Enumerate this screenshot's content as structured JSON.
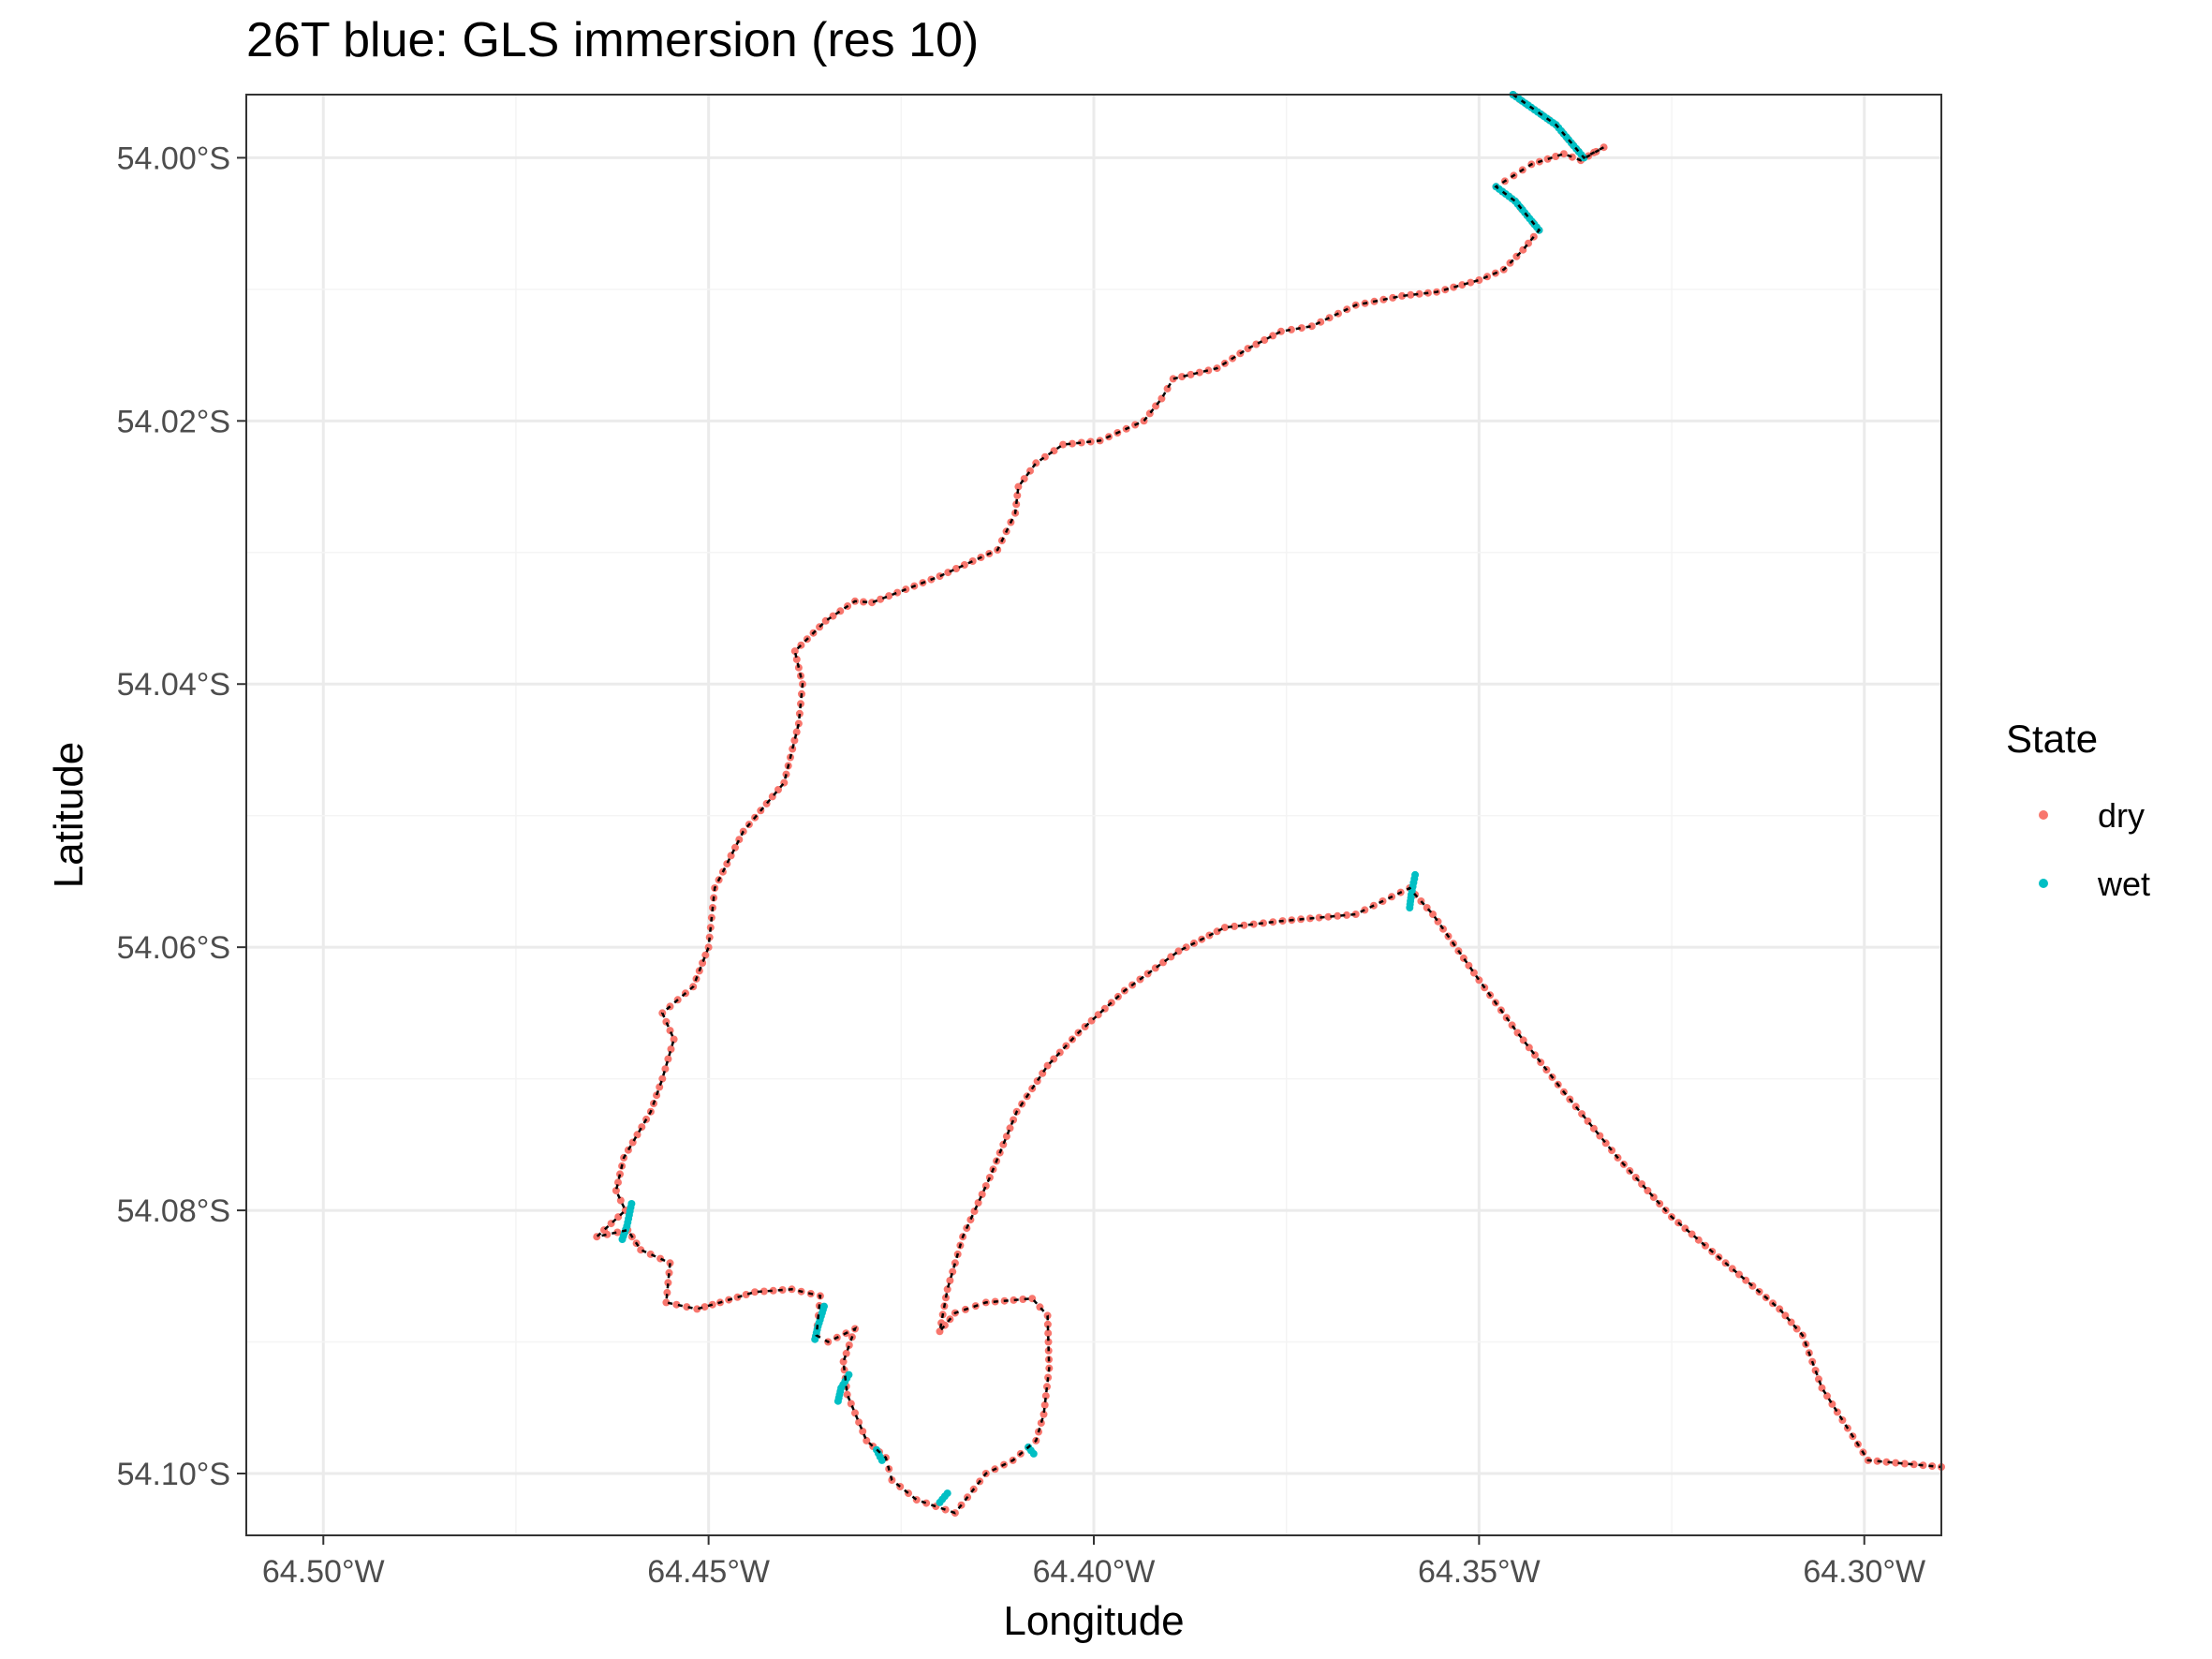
{
  "chart_data": {
    "type": "scatter",
    "title": "26T blue: GLS immersion (res 10)",
    "xlabel": "Longitude",
    "ylabel": "Latitude",
    "xlim": [
      -64.51,
      -64.29
    ],
    "ylim": [
      -54.1047,
      -53.9952
    ],
    "grid": true,
    "x_ticks": [
      -64.5,
      -64.45,
      -64.4,
      -64.35,
      -64.3
    ],
    "x_tick_labels": [
      "64.50°W",
      "64.45°W",
      "64.40°W",
      "64.35°W",
      "64.30°W"
    ],
    "y_ticks": [
      -54.0,
      -54.02,
      -54.04,
      -54.06,
      -54.08,
      -54.1
    ],
    "y_tick_labels": [
      "54.00°S",
      "54.02°S",
      "54.04°S",
      "54.06°S",
      "54.08°S",
      "54.10°S"
    ],
    "legend": {
      "title": "State",
      "placement": "right",
      "entries": [
        {
          "label": "dry",
          "color": "#F8766D"
        },
        {
          "label": "wet",
          "color": "#00BFC4"
        }
      ]
    },
    "track_color": "#000000",
    "track": [
      [
        -64.3456,
        -53.9952
      ],
      [
        -64.34,
        -53.9975
      ],
      [
        -64.3364,
        -54.0
      ],
      [
        -64.3338,
        -53.9992
      ],
      [
        -64.3368,
        -54.0002
      ],
      [
        -64.339,
        -53.9997
      ],
      [
        -64.3432,
        -54.0005
      ],
      [
        -64.3478,
        -54.0022
      ],
      [
        -64.3453,
        -54.0033
      ],
      [
        -64.3422,
        -54.0055
      ],
      [
        -64.3443,
        -54.007
      ],
      [
        -64.3468,
        -54.0085
      ],
      [
        -64.35,
        -54.0093
      ],
      [
        -64.3555,
        -54.0102
      ],
      [
        -64.36,
        -54.0105
      ],
      [
        -64.366,
        -54.0112
      ],
      [
        -64.3717,
        -54.0128
      ],
      [
        -64.3757,
        -54.0132
      ],
      [
        -64.38,
        -54.0145
      ],
      [
        -64.384,
        -54.016
      ],
      [
        -64.3897,
        -54.0168
      ],
      [
        -64.3912,
        -54.0183
      ],
      [
        -64.3935,
        -54.02
      ],
      [
        -64.3992,
        -54.0215
      ],
      [
        -64.404,
        -54.0218
      ],
      [
        -64.4075,
        -54.0232
      ],
      [
        -64.4098,
        -54.025
      ],
      [
        -64.4102,
        -54.027
      ],
      [
        -64.4125,
        -54.0298
      ],
      [
        -64.42,
        -54.0318
      ],
      [
        -64.4288,
        -54.0338
      ],
      [
        -64.431,
        -54.0337
      ],
      [
        -64.4348,
        -54.0352
      ],
      [
        -64.4388,
        -54.0375
      ],
      [
        -64.4378,
        -54.04
      ],
      [
        -64.4383,
        -54.043
      ],
      [
        -64.4402,
        -54.0475
      ],
      [
        -64.4455,
        -54.0512
      ],
      [
        -64.4492,
        -54.0555
      ],
      [
        -64.45,
        -54.06
      ],
      [
        -64.452,
        -54.063
      ],
      [
        -64.456,
        -54.065
      ],
      [
        -64.4545,
        -54.067
      ],
      [
        -64.456,
        -54.07
      ],
      [
        -64.4575,
        -54.0725
      ],
      [
        -64.461,
        -54.076
      ],
      [
        -64.462,
        -54.0785
      ],
      [
        -64.4608,
        -54.08
      ],
      [
        -64.4645,
        -54.082
      ],
      [
        -64.4605,
        -54.0815
      ],
      [
        -64.4588,
        -54.083
      ],
      [
        -64.455,
        -54.084
      ],
      [
        -64.4555,
        -54.087
      ],
      [
        -64.4515,
        -54.0875
      ],
      [
        -64.4485,
        -54.087
      ],
      [
        -64.444,
        -54.0862
      ],
      [
        -64.4392,
        -54.086
      ],
      [
        -64.4355,
        -54.0865
      ],
      [
        -64.436,
        -54.0895
      ],
      [
        -64.4345,
        -54.09
      ],
      [
        -64.431,
        -54.089
      ],
      [
        -64.4325,
        -54.0915
      ],
      [
        -64.432,
        -54.094
      ],
      [
        -64.4295,
        -54.0975
      ],
      [
        -64.427,
        -54.0988
      ],
      [
        -64.4262,
        -54.1005
      ],
      [
        -64.423,
        -54.102
      ],
      [
        -64.418,
        -54.103
      ],
      [
        -64.414,
        -54.1
      ],
      [
        -64.4105,
        -54.099
      ],
      [
        -64.4075,
        -54.0975
      ],
      [
        -64.4065,
        -54.0955
      ],
      [
        -64.4058,
        -54.092
      ],
      [
        -64.406,
        -54.088
      ],
      [
        -64.408,
        -54.0867
      ],
      [
        -64.414,
        -54.087
      ],
      [
        -64.418,
        -54.0878
      ],
      [
        -64.42,
        -54.0892
      ],
      [
        -64.419,
        -54.086
      ],
      [
        -64.417,
        -54.082
      ],
      [
        -64.4135,
        -54.0775
      ],
      [
        -64.41,
        -54.0725
      ],
      [
        -64.406,
        -54.069
      ],
      [
        -64.402,
        -54.0665
      ],
      [
        -64.396,
        -54.0633
      ],
      [
        -64.389,
        -54.0603
      ],
      [
        -64.383,
        -54.0585
      ],
      [
        -64.3755,
        -54.058
      ],
      [
        -64.366,
        -54.0575
      ],
      [
        -64.359,
        -54.0555
      ],
      [
        -64.3583,
        -54.056
      ],
      [
        -64.356,
        -54.0575
      ],
      [
        -64.35,
        -54.0625
      ],
      [
        -64.345,
        -54.0665
      ],
      [
        -64.339,
        -54.071
      ],
      [
        -64.332,
        -54.076
      ],
      [
        -64.325,
        -54.0805
      ],
      [
        -64.318,
        -54.084
      ],
      [
        -64.311,
        -54.0875
      ],
      [
        -64.308,
        -54.0895
      ],
      [
        -64.3055,
        -54.0935
      ],
      [
        -64.2995,
        -54.099
      ],
      [
        -64.29,
        -54.0995
      ]
    ],
    "wet_segments": [
      [
        [
          -64.3456,
          -53.9952
        ],
        [
          -64.34,
          -53.9975
        ],
        [
          -64.3364,
          -54.0
        ]
      ],
      [
        [
          -64.3478,
          -54.0022
        ],
        [
          -64.3453,
          -54.0033
        ],
        [
          -64.3422,
          -54.0055
        ]
      ],
      [
        [
          -64.3583,
          -54.0545
        ],
        [
          -64.3588,
          -54.056
        ],
        [
          -64.359,
          -54.057
        ]
      ],
      [
        [
          -64.435,
          -54.0873
        ],
        [
          -64.4358,
          -54.0888
        ],
        [
          -64.4362,
          -54.0898
        ]
      ],
      [
        [
          -64.4318,
          -54.0925
        ],
        [
          -64.4328,
          -54.0935
        ],
        [
          -64.4332,
          -54.0945
        ]
      ],
      [
        [
          -64.46,
          -54.0795
        ],
        [
          -64.4606,
          -54.0812
        ],
        [
          -64.4612,
          -54.0822
        ]
      ],
      [
        [
          -64.4275,
          -54.099
        ],
        [
          -64.4282,
          -54.0982
        ]
      ],
      [
        [
          -64.419,
          -54.1015
        ],
        [
          -64.42,
          -54.1022
        ]
      ],
      [
        [
          -64.4078,
          -54.0985
        ],
        [
          -64.4085,
          -54.098
        ]
      ]
    ]
  }
}
